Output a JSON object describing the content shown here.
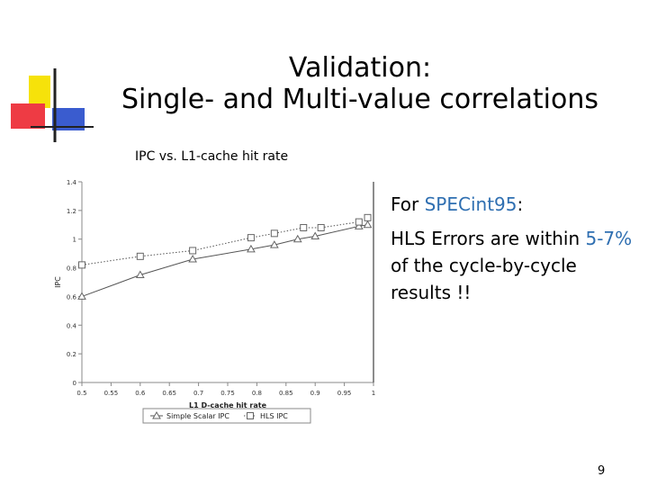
{
  "slide": {
    "title_line1": "Validation:",
    "title_line2": "Single- and Multi-value correlations",
    "chart_caption": "IPC vs. L1-cache hit rate",
    "bullet1_prefix": "For ",
    "bullet1_accent": "SPECint95",
    "bullet1_suffix": ":",
    "bullet2_prefix": "HLS Errors are within ",
    "bullet2_accent": "5-7%",
    "bullet2_suffix": " of the cycle-by-cycle results !!",
    "page_number": "9",
    "accent_color": "#2f6fb1"
  },
  "chart_data": {
    "type": "line",
    "title": "",
    "xlabel": "L1 D-cache hit rate",
    "ylabel": "IPC",
    "xlim": [
      0.5,
      1.0
    ],
    "ylim": [
      0,
      1.4
    ],
    "x_ticks": [
      "0.5",
      "0.55",
      "0.6",
      "0.65",
      "0.7",
      "0.75",
      "0.8",
      "0.85",
      "0.9",
      "0.95",
      "1"
    ],
    "y_ticks": [
      "0",
      "0.2",
      "0.4",
      "0.6",
      "0.8",
      "1",
      "1.2",
      "1.4"
    ],
    "grid": false,
    "legend_position": "bottom",
    "series": [
      {
        "name": "Simple Scalar IPC",
        "marker": "triangle",
        "line_style": "solid",
        "x": [
          0.5,
          0.6,
          0.69,
          0.79,
          0.83,
          0.87,
          0.9,
          0.975,
          0.99
        ],
        "y": [
          0.6,
          0.75,
          0.86,
          0.93,
          0.96,
          1.0,
          1.02,
          1.09,
          1.1
        ]
      },
      {
        "name": "HLS IPC",
        "marker": "square",
        "line_style": "dotted",
        "x": [
          0.5,
          0.6,
          0.69,
          0.79,
          0.83,
          0.88,
          0.91,
          0.975,
          0.99
        ],
        "y": [
          0.82,
          0.88,
          0.92,
          1.01,
          1.04,
          1.08,
          1.08,
          1.12,
          1.15
        ]
      }
    ]
  }
}
